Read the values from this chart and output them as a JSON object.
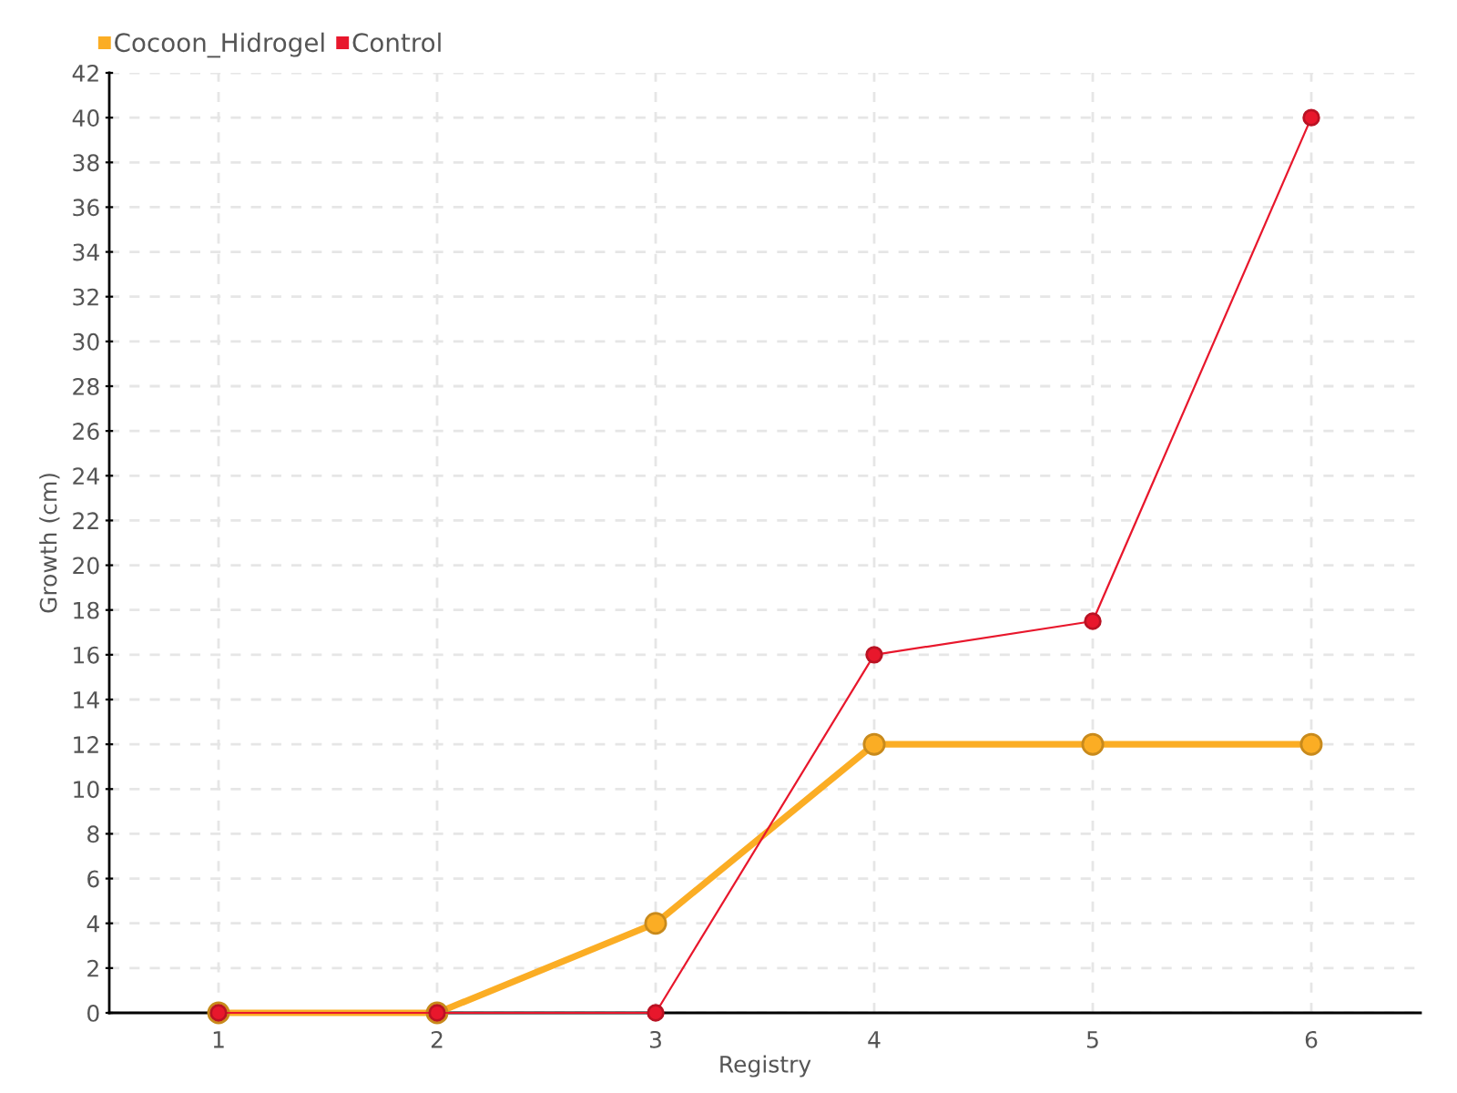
{
  "chart_data": {
    "type": "line",
    "x": [
      1,
      2,
      3,
      4,
      5,
      6
    ],
    "xlabel": "Registry",
    "ylabel": "Growth (cm)",
    "series": [
      {
        "name": "Cocoon_Hidrogel",
        "color": "#fbad24",
        "values": [
          0,
          0,
          4,
          12,
          12,
          12
        ]
      },
      {
        "name": "Control",
        "color": "#e8172c",
        "values": [
          0,
          0,
          0,
          16,
          17.5,
          40
        ]
      }
    ],
    "xlim": [
      0.5,
      6.5
    ],
    "xticks": [
      1,
      2,
      3,
      4,
      5,
      6
    ],
    "ylim": [
      0,
      42
    ],
    "yticks": [
      0,
      2,
      4,
      6,
      8,
      10,
      12,
      14,
      16,
      18,
      20,
      22,
      24,
      26,
      28,
      30,
      32,
      34,
      36,
      38,
      40,
      42
    ],
    "grid": true,
    "legend": "top left",
    "marker": "circle",
    "line_style": "solid"
  }
}
